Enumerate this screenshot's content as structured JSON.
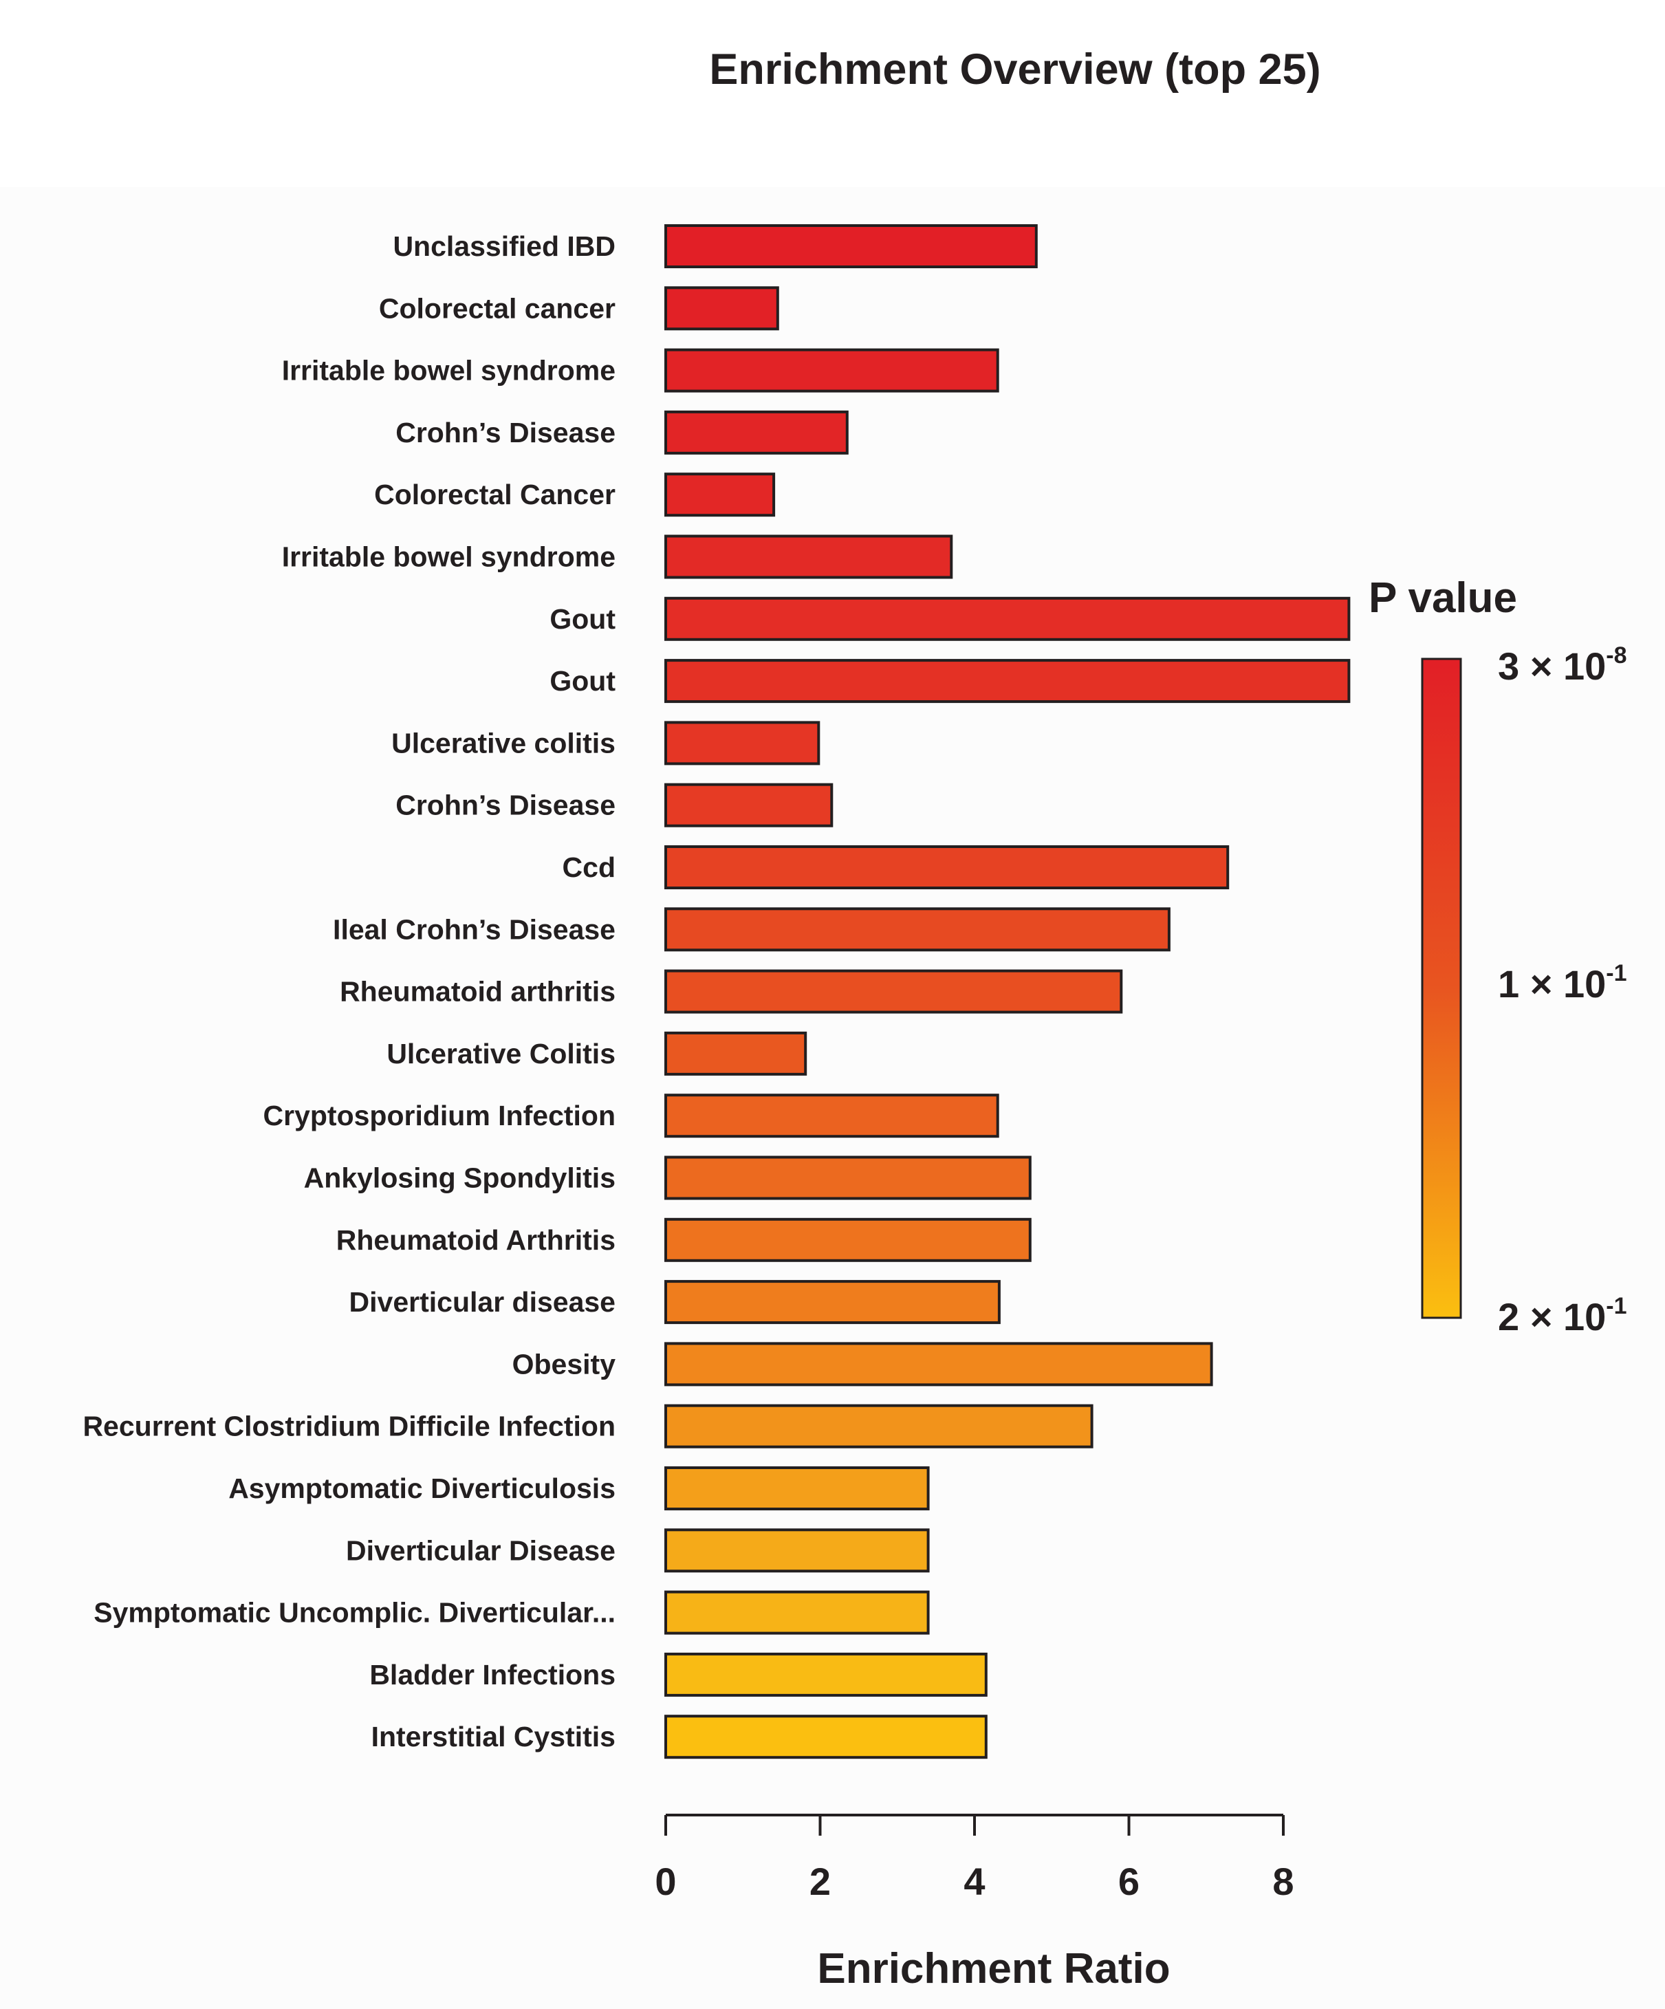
{
  "chart_data": {
    "type": "bar",
    "orientation": "horizontal",
    "title": "Enrichment Overview (top 25)",
    "xlabel": "Enrichment Ratio",
    "ylabel": "",
    "xlim": [
      0,
      8
    ],
    "xticks": [
      0,
      2,
      4,
      6,
      8
    ],
    "grid": false,
    "categories": [
      "Unclassified IBD",
      "Colorectal cancer",
      "Irritable bowel syndrome",
      "Crohn’s Disease",
      "Colorectal Cancer",
      "Irritable bowel syndrome",
      "Gout",
      "Gout",
      "Ulcerative colitis",
      "Crohn’s Disease",
      "Ccd",
      "Ileal Crohn’s Disease",
      "Rheumatoid arthritis",
      "Ulcerative Colitis",
      "Cryptosporidium Infection",
      "Ankylosing Spondylitis",
      "Rheumatoid Arthritis",
      "Diverticular disease",
      "Obesity",
      "Recurrent Clostridium Difficile Infection",
      "Asymptomatic Diverticulosis",
      "Diverticular Disease",
      "Symptomatic Uncomplic. Diverticular...",
      "Bladder Infections",
      "Interstitial Cystitis"
    ],
    "values": [
      4.8,
      1.45,
      4.3,
      2.35,
      1.4,
      3.7,
      8.85,
      8.85,
      1.98,
      2.15,
      7.28,
      6.52,
      5.9,
      1.81,
      4.3,
      4.72,
      4.72,
      4.32,
      7.07,
      5.52,
      3.4,
      3.4,
      3.4,
      4.15,
      4.15
    ],
    "bar_colors": [
      "#e21f26",
      "#e22126",
      "#e22326",
      "#e22526",
      "#e32726",
      "#e32a26",
      "#e42d26",
      "#e43125",
      "#e53625",
      "#e63b24",
      "#e64223",
      "#e74a22",
      "#e84f21",
      "#e95820",
      "#eb6220",
      "#ec6a1f",
      "#ee731e",
      "#ef7d1d",
      "#f1871c",
      "#f2931b",
      "#f49f1a",
      "#f5aa19",
      "#f7b317",
      "#f9bb14",
      "#fbbf10"
    ],
    "legend": {
      "title": "P value",
      "placement": "right",
      "labels": [
        {
          "mantissa": "3 × 10",
          "exp": "-8"
        },
        {
          "mantissa": "1 × 10",
          "exp": "-1"
        },
        {
          "mantissa": "2 × 10",
          "exp": "-1"
        }
      ],
      "gradient_top": "#e21f26",
      "gradient_mid": "#e85520",
      "gradient_bottom": "#fbbf10"
    }
  }
}
